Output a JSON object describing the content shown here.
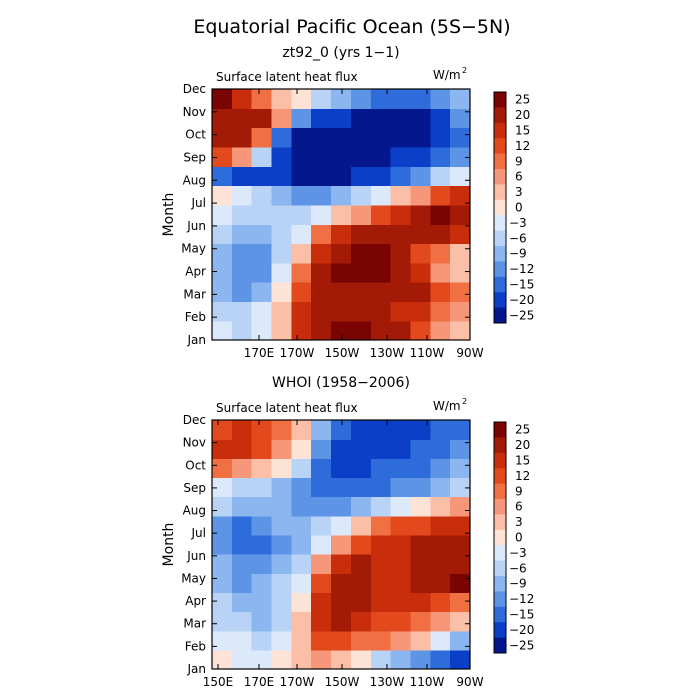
{
  "figure": {
    "title": "Equatorial Pacific Ocean (5S−5N)",
    "ylabel": "Month",
    "units": "W/m",
    "units_exp": "2"
  },
  "chart_data": [
    {
      "type": "heatmap",
      "panel_title": "zt92_0 (yrs 1−1)",
      "subtitle": "Surface latent heat flux",
      "ylabel": "Month",
      "units": "W/m²",
      "x_ticks": [
        "170E",
        "170W",
        "150W",
        "130W",
        "110W",
        "90W"
      ],
      "xlim": [
        "150E",
        "90W"
      ],
      "y_ticks": [
        "Jan",
        "Feb",
        "Mar",
        "Apr",
        "May",
        "Jun",
        "Jul",
        "Aug",
        "Sep",
        "Oct",
        "Nov",
        "Dec"
      ],
      "colorbar": {
        "levels": [
          "25",
          "20",
          "15",
          "12",
          "9",
          "6",
          "3",
          "0",
          "−3",
          "−6",
          "−9",
          "−12",
          "−15",
          "−20",
          "−25"
        ],
        "colors": [
          "#7a0403",
          "#a31a06",
          "#c92e0c",
          "#e2491c",
          "#f07044",
          "#f7977a",
          "#fbbea6",
          "#fde3d5",
          "#dce9fb",
          "#b9d3f6",
          "#8cb6ef",
          "#5d94e6",
          "#2f6cdb",
          "#0c3fc8",
          "#04178c"
        ]
      },
      "values": [
        [
          -3,
          -6,
          -3,
          3,
          15,
          20,
          25,
          25,
          20,
          20,
          12,
          6,
          3
        ],
        [
          -6,
          -6,
          -3,
          3,
          15,
          20,
          20,
          20,
          20,
          15,
          15,
          9,
          6
        ],
        [
          -9,
          -12,
          -9,
          0,
          12,
          20,
          20,
          20,
          20,
          20,
          20,
          12,
          9
        ],
        [
          -9,
          -12,
          -12,
          -3,
          9,
          20,
          25,
          25,
          25,
          20,
          15,
          6,
          3
        ],
        [
          -9,
          -12,
          -12,
          -6,
          3,
          15,
          20,
          25,
          25,
          20,
          12,
          9,
          3
        ],
        [
          -6,
          -9,
          -9,
          -6,
          -3,
          9,
          15,
          20,
          20,
          20,
          20,
          20,
          15
        ],
        [
          -3,
          -6,
          -6,
          -6,
          -6,
          -3,
          3,
          6,
          12,
          15,
          20,
          25,
          20
        ],
        [
          0,
          -3,
          -6,
          -9,
          -12,
          -12,
          -9,
          -6,
          -3,
          3,
          6,
          12,
          15
        ],
        [
          -15,
          -20,
          -20,
          -20,
          -25,
          -25,
          -25,
          -20,
          -20,
          -15,
          -12,
          -6,
          -3
        ],
        [
          12,
          6,
          -6,
          -20,
          -25,
          -25,
          -25,
          -25,
          -25,
          -20,
          -20,
          -15,
          -12
        ],
        [
          20,
          20,
          9,
          -15,
          -25,
          -25,
          -25,
          -25,
          -25,
          -25,
          -25,
          -20,
          -15
        ],
        [
          20,
          20,
          20,
          6,
          -12,
          -20,
          -20,
          -25,
          -25,
          -25,
          -25,
          -20,
          -12
        ],
        [
          25,
          15,
          9,
          3,
          0,
          -6,
          -9,
          -12,
          -15,
          -15,
          -15,
          -12,
          -9
        ]
      ]
    },
    {
      "type": "heatmap",
      "panel_title": "WHOI (1958−2006)",
      "subtitle": "Surface latent heat flux",
      "ylabel": "Month",
      "units": "W/m²",
      "x_ticks": [
        "150E",
        "170E",
        "170W",
        "150W",
        "130W",
        "110W",
        "90W"
      ],
      "xlim": [
        "150E",
        "90W"
      ],
      "y_ticks": [
        "Jan",
        "Feb",
        "Mar",
        "Apr",
        "May",
        "Jun",
        "Jul",
        "Aug",
        "Sep",
        "Oct",
        "Nov",
        "Dec"
      ],
      "colorbar": {
        "levels": [
          "25",
          "20",
          "15",
          "12",
          "9",
          "6",
          "3",
          "0",
          "−3",
          "−6",
          "−9",
          "−12",
          "−15",
          "−20",
          "−25"
        ],
        "colors": [
          "#7a0403",
          "#a31a06",
          "#c92e0c",
          "#e2491c",
          "#f07044",
          "#f7977a",
          "#fbbea6",
          "#fde3d5",
          "#dce9fb",
          "#b9d3f6",
          "#8cb6ef",
          "#5d94e6",
          "#2f6cdb",
          "#0c3fc8",
          "#04178c"
        ]
      },
      "values": [
        [
          0,
          -3,
          -3,
          0,
          3,
          6,
          3,
          0,
          -6,
          -9,
          -12,
          -15,
          -20
        ],
        [
          -3,
          -3,
          -6,
          -3,
          3,
          12,
          12,
          9,
          9,
          6,
          3,
          -3,
          -9
        ],
        [
          -6,
          -6,
          -9,
          -6,
          3,
          15,
          20,
          15,
          12,
          12,
          9,
          6,
          3
        ],
        [
          -6,
          -9,
          -9,
          -6,
          0,
          15,
          20,
          20,
          15,
          15,
          15,
          12,
          9
        ],
        [
          -9,
          -12,
          -9,
          -6,
          -3,
          12,
          20,
          20,
          15,
          15,
          20,
          20,
          25
        ],
        [
          -9,
          -12,
          -12,
          -9,
          -6,
          6,
          15,
          20,
          15,
          15,
          20,
          20,
          20
        ],
        [
          -12,
          -15,
          -15,
          -12,
          -9,
          -3,
          6,
          12,
          15,
          15,
          20,
          20,
          20
        ],
        [
          -12,
          -15,
          -12,
          -9,
          -9,
          -6,
          -3,
          3,
          9,
          12,
          12,
          15,
          15
        ],
        [
          -6,
          -9,
          -9,
          -9,
          -12,
          -12,
          -12,
          -9,
          -6,
          -3,
          0,
          3,
          6
        ],
        [
          -3,
          -6,
          -6,
          -9,
          -12,
          -15,
          -15,
          -15,
          -15,
          -12,
          -12,
          -9,
          -6
        ],
        [
          9,
          6,
          3,
          0,
          -6,
          -15,
          -20,
          -20,
          -15,
          -15,
          -15,
          -12,
          -9
        ],
        [
          15,
          15,
          12,
          6,
          0,
          -12,
          -20,
          -20,
          -20,
          -20,
          -15,
          -15,
          -12
        ],
        [
          12,
          15,
          12,
          9,
          3,
          -9,
          -15,
          -20,
          -20,
          -20,
          -20,
          -15,
          -15
        ]
      ]
    }
  ]
}
